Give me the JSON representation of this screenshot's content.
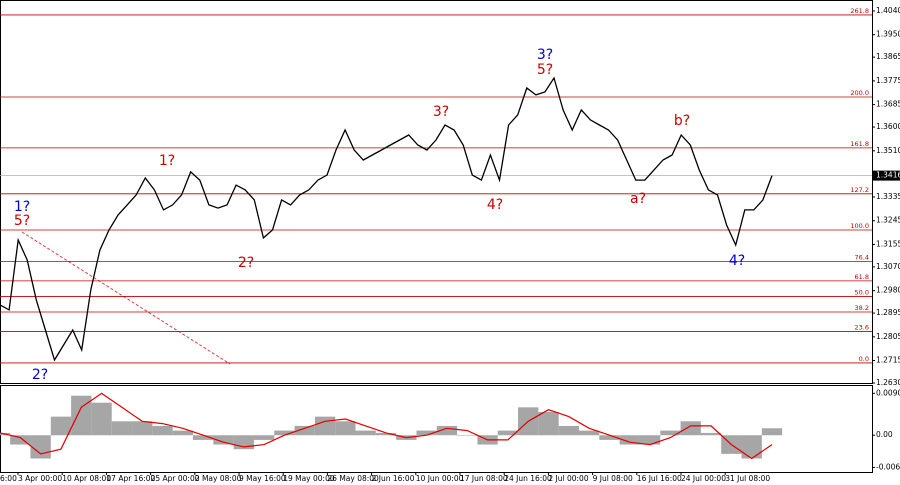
{
  "chart_data": [
    {
      "type": "line",
      "values": [
        1.2926,
        1.2907,
        1.3172,
        1.3096,
        1.2945,
        1.2831,
        1.2717,
        1.2774,
        1.2831,
        1.2755,
        1.2983,
        1.3134,
        1.321,
        1.3267,
        1.3305,
        1.3343,
        1.3407,
        1.3362,
        1.3286,
        1.3305,
        1.3343,
        1.343,
        1.3399,
        1.3305,
        1.3293,
        1.3305,
        1.338,
        1.3362,
        1.3324,
        1.318,
        1.321,
        1.3324,
        1.3305,
        1.3343,
        1.3362,
        1.3399,
        1.3418,
        1.3513,
        1.3589,
        1.3513,
        1.3475,
        1.3494,
        1.3513,
        1.3532,
        1.3551,
        1.357,
        1.3532,
        1.3513,
        1.3551,
        1.3608,
        1.3589,
        1.3532,
        1.3418,
        1.3399,
        1.3494,
        1.3399,
        1.3608,
        1.3646,
        1.3748,
        1.3722,
        1.3733,
        1.3786,
        1.3665,
        1.3589,
        1.3665,
        1.3627,
        1.3608,
        1.3589,
        1.3551,
        1.3475,
        1.3399,
        1.3399,
        1.3437,
        1.3475,
        1.3494,
        1.357,
        1.3532,
        1.3437,
        1.3362,
        1.3343,
        1.3229,
        1.3153,
        1.3286,
        1.3286,
        1.3324,
        1.3416
      ],
      "color": "#000000",
      "ylim": [
        1.263,
        1.4074
      ],
      "yticks": [
        {
          "value": 1.404,
          "label": "1.4040"
        },
        {
          "value": 1.395,
          "label": "1.3950"
        },
        1.3865,
        1.3775,
        1.3685,
        {
          "value": 1.36,
          "label": "1.3600"
        },
        {
          "value": 1.351,
          "label": "1.3510"
        },
        1.3335,
        1.3245,
        1.3155,
        {
          "value": 1.307,
          "label": "1.3070"
        },
        {
          "value": 1.298,
          "label": "1.2980"
        },
        1.2895,
        1.2805,
        1.2715,
        {
          "value": 1.263,
          "label": "1.2630"
        }
      ],
      "current_price": 1.3416,
      "x_labels": [
        "6:00",
        "3 Apr 00:00",
        "10 Apr 08:00",
        "17 Apr 16:00",
        "25 Apr 00:00",
        "2 May 08:00",
        "9 May 16:00",
        "19 May 00:00",
        "26 May 08:00",
        "2 Jun 16:00",
        "10 Jun 00:00",
        "17 Jun 08:00",
        "24 Jun 16:00",
        "2 Jul 00:00",
        "9 Jul 08:00",
        "16 Jul 16:00",
        "24 Jul 00:00",
        "31 Jul 08:00"
      ],
      "fib_color": "#c00000",
      "fib_levels": [
        {
          "label": "261.8",
          "price": 1.4025
        },
        {
          "label": "200.0",
          "price": 1.3714
        },
        {
          "label": "161.8",
          "price": 1.3521
        },
        {
          "label": "127.2",
          "price": 1.3347
        },
        {
          "label": "100.0",
          "price": 1.321
        },
        {
          "label": "76.4",
          "price": 1.3091
        },
        {
          "label": "61.8",
          "price": 1.3017
        },
        {
          "label": "50.0",
          "price": 1.2958
        },
        {
          "label": "38.2",
          "price": 1.2899
        },
        {
          "label": "23.6",
          "price": 1.2825
        },
        {
          "label": "0.0",
          "price": 1.2706
        }
      ],
      "waves": [
        {
          "label": "1?",
          "color": "#0000cc"
        },
        {
          "label": "5?",
          "color": "#cc0000"
        },
        {
          "label": "2?",
          "color": "#0000cc"
        },
        {
          "label": "1?",
          "color": "#cc0000"
        },
        {
          "label": "2?",
          "color": "#cc0000"
        },
        {
          "label": "3?",
          "color": "#cc0000"
        },
        {
          "label": "4?",
          "color": "#cc0000"
        },
        {
          "label": "3?",
          "color": "#0000cc"
        },
        {
          "label": "5?",
          "color": "#cc0000"
        },
        {
          "label": "a?",
          "color": "#cc0000"
        },
        {
          "label": "b?",
          "color": "#cc0000"
        },
        {
          "label": "4?",
          "color": "#0000cc"
        }
      ]
    },
    {
      "type": "macd",
      "histogram": [
        0.0005,
        -0.002,
        -0.005,
        0.004,
        0.0085,
        0.007,
        0.003,
        0.003,
        0.002,
        0.001,
        -0.001,
        -0.002,
        -0.003,
        -0.001,
        0.001,
        0.002,
        0.004,
        0.003,
        0.001,
        0.0005,
        -0.001,
        0.001,
        0.002,
        0,
        -0.002,
        0.001,
        0.006,
        0.005,
        0.002,
        0.001,
        -0.001,
        -0.002,
        -0.002,
        0.001,
        0.003,
        0.0005,
        -0.004,
        -0.005,
        0.0015
      ],
      "signal": [
        0.0005,
        -0.0005,
        -0.004,
        -0.003,
        0.006,
        0.009,
        0.006,
        0.003,
        0.0025,
        0.0015,
        0,
        -0.0015,
        -0.0025,
        -0.002,
        0,
        0.0015,
        0.003,
        0.0035,
        0.002,
        0.0005,
        -0.0005,
        0,
        0.0015,
        0.001,
        -0.001,
        -0.001,
        0.003,
        0.0055,
        0.004,
        0.0015,
        0,
        -0.0015,
        -0.002,
        -0.0005,
        0.002,
        0.002,
        -0.002,
        -0.005,
        -0.002
      ],
      "hist_color": "#a6a6a6",
      "signal_color": "#e00000",
      "ylim": [
        -0.0079,
        0.0108
      ],
      "yticks": [
        0.00901,
        {
          "value": 0,
          "label": "0.00"
        },
        -0.00692
      ]
    }
  ]
}
